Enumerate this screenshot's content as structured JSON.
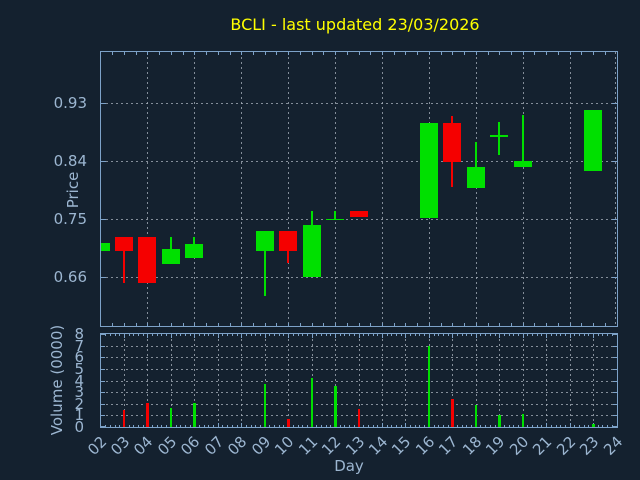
{
  "title": "BCLI - last updated 23/03/2026",
  "colors": {
    "background": "#14212f",
    "title": "#ffff00",
    "text": "#9cb6d1",
    "spine": "#7da2c8",
    "grid": "#aab2bd",
    "up": "#00e000",
    "down": "#f50000"
  },
  "chart_data": [
    {
      "type": "candlestick",
      "title": "BCLI - last updated 23/03/2026",
      "xlabel": "Day",
      "ylabel": "Price",
      "xlim": [
        2,
        24
      ],
      "ylim": [
        0.584,
        1.009
      ],
      "grid": true,
      "legend": false,
      "yticks": {
        "values": [
          0.66,
          0.75,
          0.84,
          0.93
        ],
        "labels": [
          "0.66",
          "0.75",
          "0.84",
          "0.93"
        ]
      },
      "series": [
        {
          "day": 2,
          "open": 0.7,
          "high": 0.712,
          "low": 0.7,
          "close": 0.712,
          "dir": "up"
        },
        {
          "day": 3,
          "open": 0.722,
          "high": 0.722,
          "low": 0.651,
          "close": 0.701,
          "dir": "down"
        },
        {
          "day": 4,
          "open": 0.722,
          "high": 0.722,
          "low": 0.65,
          "close": 0.65,
          "dir": "down"
        },
        {
          "day": 5,
          "open": 0.68,
          "high": 0.722,
          "low": 0.68,
          "close": 0.703,
          "dir": "up"
        },
        {
          "day": 6,
          "open": 0.689,
          "high": 0.722,
          "low": 0.689,
          "close": 0.711,
          "dir": "up"
        },
        {
          "day": 9,
          "open": 0.7,
          "high": 0.731,
          "low": 0.631,
          "close": 0.731,
          "dir": "up"
        },
        {
          "day": 10,
          "open": 0.731,
          "high": 0.731,
          "low": 0.681,
          "close": 0.7,
          "dir": "down"
        },
        {
          "day": 11,
          "open": 0.66,
          "high": 0.762,
          "low": 0.66,
          "close": 0.74,
          "dir": "up"
        },
        {
          "day": 12,
          "open": 0.75,
          "high": 0.762,
          "low": 0.75,
          "close": 0.75,
          "dir": "up"
        },
        {
          "day": 13,
          "open": 0.763,
          "high": 0.763,
          "low": 0.753,
          "close": 0.753,
          "dir": "down"
        },
        {
          "day": 16,
          "open": 0.752,
          "high": 0.899,
          "low": 0.752,
          "close": 0.899,
          "dir": "up"
        },
        {
          "day": 17,
          "open": 0.899,
          "high": 0.91,
          "low": 0.799,
          "close": 0.838,
          "dir": "down"
        },
        {
          "day": 18,
          "open": 0.798,
          "high": 0.869,
          "low": 0.798,
          "close": 0.831,
          "dir": "up"
        },
        {
          "day": 19,
          "open": 0.879,
          "high": 0.9,
          "low": 0.85,
          "close": 0.88,
          "dir": "up"
        },
        {
          "day": 20,
          "open": 0.83,
          "high": 0.912,
          "low": 0.83,
          "close": 0.84,
          "dir": "up"
        },
        {
          "day": 23,
          "open": 0.825,
          "high": 0.919,
          "low": 0.825,
          "close": 0.919,
          "dir": "up"
        }
      ]
    },
    {
      "type": "bar",
      "xlabel": "Day",
      "ylabel": "Volume (0000)",
      "xlim": [
        2,
        24
      ],
      "ylim": [
        0,
        8
      ],
      "grid": true,
      "legend": false,
      "yticks": {
        "values": [
          0,
          1,
          2,
          3,
          4,
          5,
          6,
          7,
          8
        ],
        "labels": [
          "0",
          "1",
          "2",
          "3",
          "4",
          "5",
          "6",
          "7",
          "8"
        ]
      },
      "xticks": [
        {
          "day": 2,
          "label": "02"
        },
        {
          "day": 3,
          "label": "03"
        },
        {
          "day": 4,
          "label": "04"
        },
        {
          "day": 5,
          "label": "05"
        },
        {
          "day": 6,
          "label": "06"
        },
        {
          "day": 7,
          "label": "07"
        },
        {
          "day": 8,
          "label": "08"
        },
        {
          "day": 9,
          "label": "09"
        },
        {
          "day": 10,
          "label": "10"
        },
        {
          "day": 11,
          "label": "11"
        },
        {
          "day": 12,
          "label": "12"
        },
        {
          "day": 13,
          "label": "13"
        },
        {
          "day": 14,
          "label": "14"
        },
        {
          "day": 15,
          "label": "15"
        },
        {
          "day": 16,
          "label": "16"
        },
        {
          "day": 17,
          "label": "17"
        },
        {
          "day": 18,
          "label": "18"
        },
        {
          "day": 19,
          "label": "19"
        },
        {
          "day": 20,
          "label": "20"
        },
        {
          "day": 21,
          "label": "21"
        },
        {
          "day": 22,
          "label": "22"
        },
        {
          "day": 23,
          "label": "23"
        },
        {
          "day": 24,
          "label": "24"
        }
      ],
      "bars": [
        {
          "day": 3,
          "value": 1.5,
          "dir": "down"
        },
        {
          "day": 4,
          "value": 2.1,
          "dir": "down"
        },
        {
          "day": 5,
          "value": 1.6,
          "dir": "up"
        },
        {
          "day": 6,
          "value": 2.1,
          "dir": "up"
        },
        {
          "day": 9,
          "value": 3.7,
          "dir": "up"
        },
        {
          "day": 10,
          "value": 0.7,
          "dir": "down"
        },
        {
          "day": 11,
          "value": 4.2,
          "dir": "up"
        },
        {
          "day": 12,
          "value": 3.5,
          "dir": "up"
        },
        {
          "day": 13,
          "value": 1.55,
          "dir": "down"
        },
        {
          "day": 16,
          "value": 7.0,
          "dir": "up"
        },
        {
          "day": 17,
          "value": 2.4,
          "dir": "down"
        },
        {
          "day": 18,
          "value": 1.85,
          "dir": "up"
        },
        {
          "day": 19,
          "value": 1.05,
          "dir": "up"
        },
        {
          "day": 20,
          "value": 1.1,
          "dir": "up"
        },
        {
          "day": 23,
          "value": 0.3,
          "dir": "up"
        }
      ]
    }
  ]
}
